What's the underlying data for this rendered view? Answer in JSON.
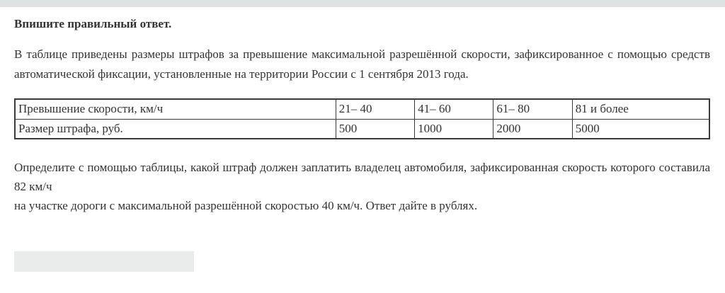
{
  "colors": {
    "top-bar-bg": "#dee2e2",
    "input-bg": "#e9eceb",
    "table-border": "#3a3a3a",
    "text": "#333333"
  },
  "question": {
    "heading": "Впишите правильный ответ.",
    "paragraph_intro": "В таблице приведены размеры штрафов за превышение максимальной разрешённой скорости, зафиксированное с помощью средств автоматической фиксации, установленные на территории России с 1 сентября 2013 года.",
    "paragraph_task": "Определите с помощью таблицы, какой штраф должен заплатить владелец автомобиля, зафиксированная скорость которого составила 82 км/ч\nна участке дороги с максимальной разрешённой скоростью 40 км/ч. Ответ дайте в рублях.",
    "answer": {
      "value": "",
      "placeholder": ""
    }
  },
  "table": {
    "rows": [
      {
        "label": "Превышение скорости, км/ч",
        "values": [
          "21– 40",
          "41– 60",
          "61– 80",
          "81 и более"
        ]
      },
      {
        "label": "Размер штрафа, руб.",
        "values": [
          "500",
          "1000",
          "2000",
          "5000"
        ]
      }
    ]
  }
}
